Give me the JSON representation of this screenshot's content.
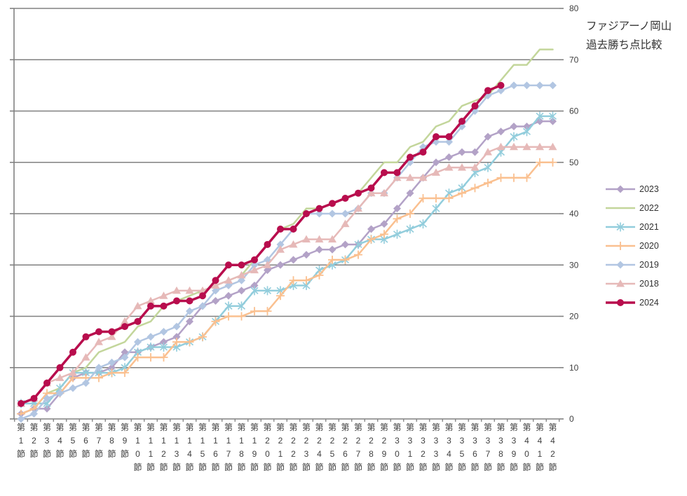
{
  "title": {
    "line1": "ファジアーノ岡山",
    "line2": "過去勝ち点比較"
  },
  "colors": {
    "grid": "#808080",
    "axis": "#808080",
    "text": "#404040",
    "background": "#ffffff"
  },
  "chart_data": {
    "type": "line",
    "title": "ファジアーノ岡山 過去勝ち点比較",
    "xlabel": "",
    "ylabel": "",
    "ylim": [
      0,
      80
    ],
    "y_ticks": [
      0,
      10,
      20,
      30,
      40,
      50,
      60,
      70,
      80
    ],
    "grid": true,
    "legend_position": "right",
    "categories": [
      "第1節",
      "第2節",
      "第3節",
      "第4節",
      "第5節",
      "第6節",
      "第7節",
      "第8節",
      "第9節",
      "第10節",
      "第11節",
      "第12節",
      "第13節",
      "第14節",
      "第15節",
      "第16節",
      "第17節",
      "第18節",
      "第19節",
      "第20節",
      "第21節",
      "第22節",
      "第23節",
      "第24節",
      "第25節",
      "第26節",
      "第27節",
      "第28節",
      "第29節",
      "第30節",
      "第31節",
      "第32節",
      "第33節",
      "第34節",
      "第35節",
      "第36節",
      "第37節",
      "第38節",
      "第39節",
      "第40節",
      "第41節",
      "第42節"
    ],
    "series": [
      {
        "name": "2023",
        "color": "#b3a2c7",
        "marker": "diamond",
        "line_width": 2.5,
        "values": [
          1,
          2,
          2,
          5,
          8,
          9,
          9,
          10,
          13,
          13,
          14,
          15,
          16,
          19,
          22,
          23,
          24,
          25,
          26,
          29,
          30,
          31,
          32,
          33,
          33,
          34,
          34,
          37,
          38,
          41,
          44,
          47,
          50,
          51,
          52,
          52,
          55,
          56,
          57,
          57,
          58,
          58
        ]
      },
      {
        "name": "2022",
        "color": "#c3d69b",
        "marker": "none",
        "line_width": 2.5,
        "values": [
          1,
          2,
          5,
          6,
          9,
          10,
          13,
          14,
          15,
          18,
          19,
          22,
          23,
          24,
          25,
          26,
          27,
          28,
          31,
          34,
          37,
          38,
          41,
          41,
          42,
          43,
          44,
          47,
          50,
          50,
          53,
          54,
          57,
          58,
          61,
          62,
          63,
          66,
          69,
          69,
          72,
          72
        ]
      },
      {
        "name": "2021",
        "color": "#92cddc",
        "marker": "asterisk",
        "line_width": 2.5,
        "values": [
          3,
          3,
          3,
          6,
          9,
          9,
          9,
          9,
          10,
          13,
          14,
          14,
          14,
          15,
          16,
          19,
          22,
          22,
          25,
          25,
          25,
          26,
          26,
          29,
          30,
          31,
          34,
          35,
          35,
          36,
          37,
          38,
          41,
          44,
          45,
          48,
          49,
          52,
          55,
          56,
          59,
          59
        ]
      },
      {
        "name": "2020",
        "color": "#fac090",
        "marker": "plus",
        "line_width": 2.5,
        "values": [
          1,
          2,
          5,
          5,
          8,
          8,
          8,
          9,
          9,
          12,
          12,
          12,
          15,
          15,
          16,
          19,
          20,
          20,
          21,
          21,
          24,
          27,
          27,
          28,
          31,
          31,
          32,
          35,
          36,
          39,
          40,
          43,
          43,
          43,
          44,
          45,
          46,
          47,
          47,
          47,
          50,
          50
        ]
      },
      {
        "name": "2019",
        "color": "#b2c6e2",
        "marker": "diamond",
        "line_width": 2.5,
        "values": [
          0,
          1,
          4,
          5,
          6,
          7,
          10,
          11,
          12,
          15,
          16,
          17,
          18,
          21,
          22,
          25,
          26,
          27,
          30,
          31,
          34,
          37,
          40,
          40,
          40,
          40,
          41,
          44,
          44,
          47,
          50,
          53,
          54,
          54,
          57,
          60,
          63,
          64,
          65,
          65,
          65,
          65
        ]
      },
      {
        "name": "2018",
        "color": "#e6b9b8",
        "marker": "triangle",
        "line_width": 2.5,
        "values": [
          3,
          4,
          7,
          8,
          9,
          12,
          15,
          16,
          19,
          22,
          23,
          24,
          25,
          25,
          25,
          26,
          27,
          28,
          29,
          30,
          33,
          34,
          35,
          35,
          35,
          38,
          41,
          44,
          44,
          47,
          47,
          47,
          48,
          49,
          49,
          49,
          52,
          53,
          53,
          53,
          53,
          53
        ]
      },
      {
        "name": "2024",
        "color": "#b80d4d",
        "marker": "circle",
        "line_width": 3.5,
        "values": [
          3,
          4,
          7,
          10,
          13,
          16,
          17,
          17,
          18,
          19,
          22,
          22,
          23,
          23,
          24,
          27,
          30,
          30,
          31,
          34,
          37,
          37,
          40,
          41,
          42,
          43,
          44,
          45,
          48,
          48,
          51,
          52,
          55,
          55,
          58,
          61,
          64,
          65
        ]
      }
    ]
  }
}
